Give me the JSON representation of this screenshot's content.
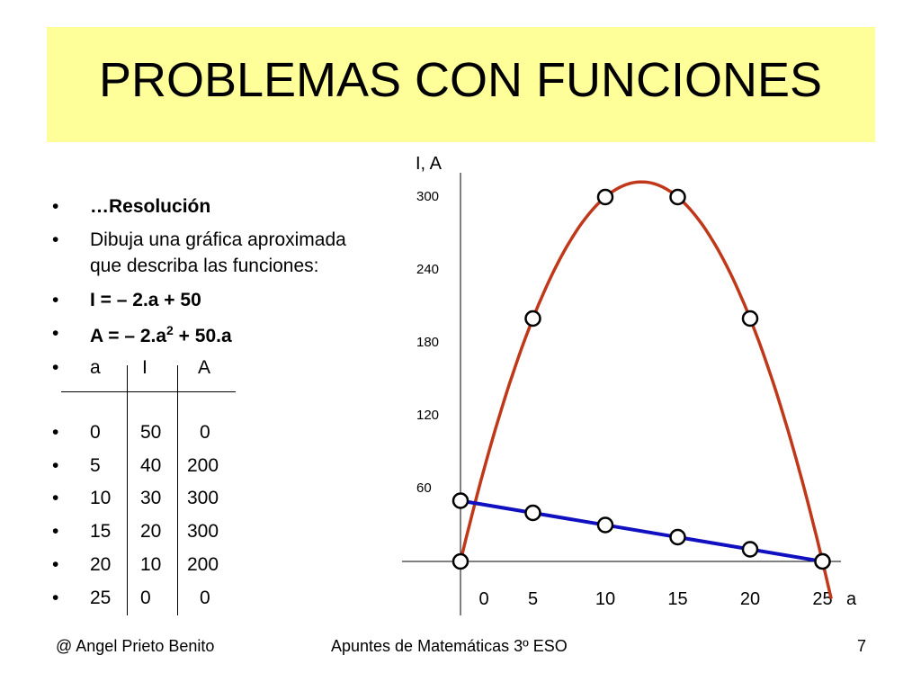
{
  "title": "PROBLEMAS CON FUNCIONES",
  "bullets": {
    "resolucion": "…Resolución",
    "dibuja_1": "Dibuja una gráfica aproximada",
    "dibuja_2": "que describa las funciones:",
    "func_i": "I = – 2.a + 50",
    "func_a_prefix": "A = – 2.a",
    "func_a_exp": "2",
    "func_a_suffix": " + 50.a",
    "bullet_char": "•"
  },
  "table": {
    "headers": [
      "a",
      "I",
      "A"
    ],
    "rows": [
      [
        "0",
        "50",
        "0"
      ],
      [
        "5",
        "40",
        "200"
      ],
      [
        "10",
        "30",
        "300"
      ],
      [
        "15",
        "20",
        "300"
      ],
      [
        "20",
        "10",
        "200"
      ],
      [
        "25",
        "0",
        "0"
      ]
    ]
  },
  "chart_data": {
    "type": "line",
    "ylabel": "I, A",
    "xlabel": "a",
    "x_ticks": [
      "0",
      "5",
      "10",
      "15",
      "20",
      "25"
    ],
    "y_ticks": [
      "60",
      "120",
      "180",
      "240",
      "300"
    ],
    "xlim": [
      0,
      25
    ],
    "ylim": [
      0,
      300
    ],
    "series": [
      {
        "color": "#c0381a",
        "function": "A = -2a^2 + 50a",
        "points": [
          [
            0,
            0
          ],
          [
            5,
            200
          ],
          [
            10,
            300
          ],
          [
            15,
            300
          ],
          [
            20,
            200
          ],
          [
            25,
            0
          ]
        ]
      },
      {
        "color": "#1010c0",
        "function": "I = -2a + 50",
        "points": [
          [
            0,
            50
          ],
          [
            5,
            40
          ],
          [
            10,
            30
          ],
          [
            15,
            20
          ],
          [
            20,
            10
          ],
          [
            25,
            0
          ]
        ]
      }
    ]
  },
  "footer": {
    "author": "@ Angel Prieto Benito",
    "course": "Apuntes de Matemáticas 3º ESO",
    "page": "7"
  }
}
